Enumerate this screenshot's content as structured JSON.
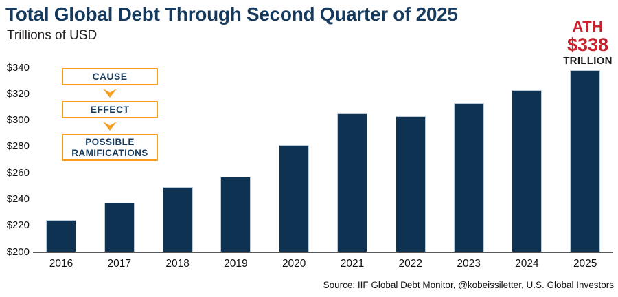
{
  "header": {
    "title": "Total Global Debt Through Second Quarter of 2025",
    "subtitle": "Trillions of USD"
  },
  "ath": {
    "label": "ATH",
    "value": "$338",
    "unit": "TRILLION"
  },
  "flow": {
    "cause": "CAUSE",
    "effect": "EFFECT",
    "ramifications": "POSSIBLE RAMIFICATIONS"
  },
  "source": "Source: IIF Global Debt Monitor, @kobeissiletter, U.S. Global Investors",
  "colors": {
    "bar": "#0E3252",
    "navy": "#153A5D",
    "orange": "#F59E1F",
    "red": "#CB202C",
    "axis": "#58595B"
  },
  "chart_data": {
    "type": "bar",
    "title": "Total Global Debt Through Second Quarter of 2025",
    "xlabel": "",
    "ylabel": "Trillions of USD",
    "categories": [
      "2016",
      "2017",
      "2018",
      "2019",
      "2020",
      "2021",
      "2022",
      "2023",
      "2024",
      "2025"
    ],
    "values": [
      224,
      237,
      249,
      257,
      281,
      305,
      303,
      313,
      323,
      338
    ],
    "ylim": [
      200,
      340
    ],
    "ytick_step": 20,
    "ytick_labels_top_down": [
      "$340",
      "$320",
      "$300",
      "$280",
      "$260",
      "$240",
      "$220",
      "$200"
    ],
    "grid": false,
    "legend": false,
    "annotation": "ATH $338 TRILLION (2025 bar)"
  }
}
